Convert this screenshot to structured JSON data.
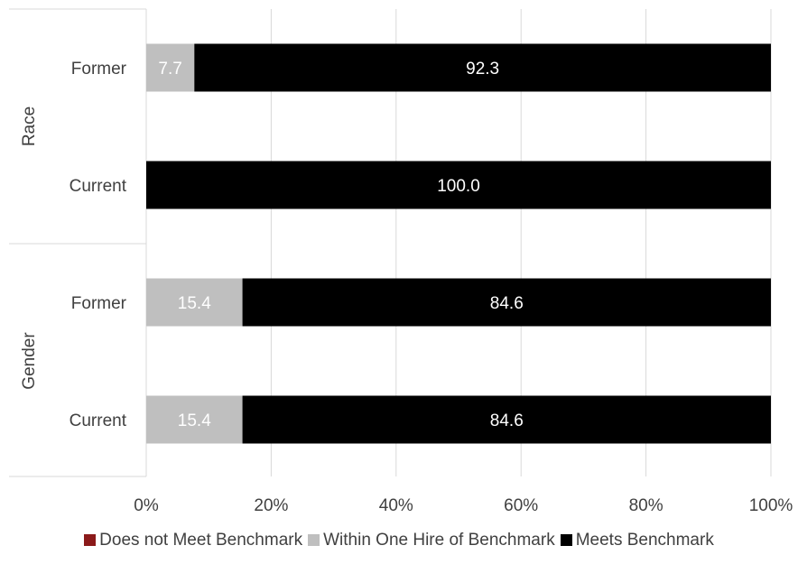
{
  "chart_data": {
    "type": "bar",
    "orientation": "horizontal",
    "stacked": "percent",
    "groups": [
      {
        "name": "Race",
        "categories": [
          "Former",
          "Current"
        ]
      },
      {
        "name": "Gender",
        "categories": [
          "Former",
          "Current"
        ]
      }
    ],
    "rows": [
      {
        "group": "Race",
        "category": "Former",
        "values": [
          0,
          7.7,
          92.3
        ]
      },
      {
        "group": "Race",
        "category": "Current",
        "values": [
          0,
          0,
          100.0
        ]
      },
      {
        "group": "Gender",
        "category": "Former",
        "values": [
          0,
          15.4,
          84.6
        ]
      },
      {
        "group": "Gender",
        "category": "Current",
        "values": [
          0,
          15.4,
          84.6
        ]
      }
    ],
    "series": [
      {
        "name": "Does not Meet Benchmark",
        "color": "#8B1A1A"
      },
      {
        "name": "Within One Hire of Benchmark",
        "color": "#BFBFBF"
      },
      {
        "name": "Meets Benchmark",
        "color": "#000000"
      }
    ],
    "data_labels": [
      [
        "",
        "7.7",
        "92.3"
      ],
      [
        "",
        "",
        "100.0"
      ],
      [
        "",
        "15.4",
        "84.6"
      ],
      [
        "",
        "15.4",
        "84.6"
      ]
    ],
    "xaxis": {
      "ticks": [
        0,
        20,
        40,
        60,
        80,
        100
      ],
      "tick_labels": [
        "0%",
        "20%",
        "40%",
        "60%",
        "80%",
        "100%"
      ],
      "range": [
        0,
        100
      ]
    },
    "grid": true,
    "legend_position": "bottom"
  }
}
